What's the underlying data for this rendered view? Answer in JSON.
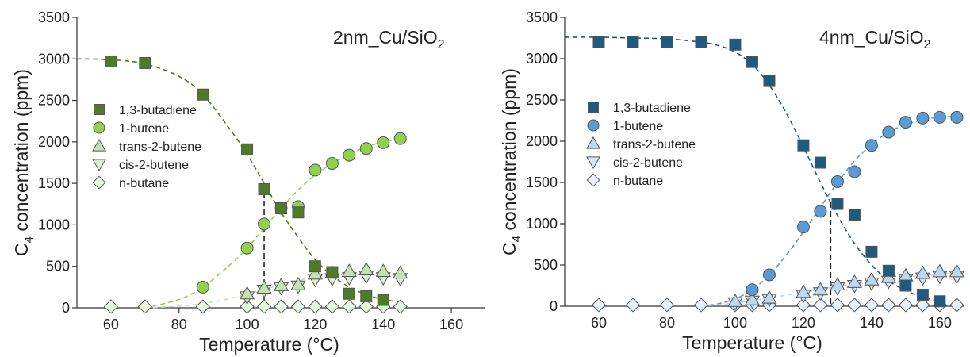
{
  "chart_data": [
    {
      "type": "scatter",
      "title": "2nm_Cu/SiO",
      "title_sub": "2",
      "xlabel": "Temperature (°C)",
      "ylabel_main": "C",
      "ylabel_sub": "4",
      "ylabel_rest": " concentration (ppm)",
      "xlim": [
        50,
        170
      ],
      "ylim": [
        0,
        3500
      ],
      "xticks": [
        60,
        80,
        100,
        120,
        140,
        160
      ],
      "yticks": [
        0,
        500,
        1000,
        1500,
        2000,
        2500,
        3000,
        3500
      ],
      "legend_position": "left",
      "colors": {
        "dark": "#4f7a28",
        "light": "#92d050",
        "pale": "#c6e0b4",
        "paler": "#dbeed0",
        "palest": "#e9f4e1"
      },
      "marker_line": 105,
      "series": [
        {
          "name": "1,3-butadiene",
          "marker": "square",
          "color": "#4f7a28",
          "x": [
            60,
            70,
            87,
            100,
            105,
            110,
            115,
            120,
            125,
            130,
            135,
            140
          ],
          "y": [
            2970,
            2950,
            2570,
            1910,
            1430,
            1200,
            1150,
            500,
            430,
            170,
            140,
            95
          ]
        },
        {
          "name": "1-butene",
          "marker": "circle",
          "color": "#92d050",
          "x": [
            87,
            100,
            105,
            110,
            115,
            120,
            125,
            130,
            135,
            140,
            145
          ],
          "y": [
            250,
            720,
            1010,
            1200,
            1220,
            1660,
            1740,
            1840,
            1920,
            1990,
            2040
          ]
        },
        {
          "name": "trans-2-butene",
          "marker": "triangle-up",
          "color": "#c6e0b4",
          "x": [
            100,
            105,
            110,
            115,
            120,
            125,
            130,
            135,
            140,
            145
          ],
          "y": [
            170,
            240,
            270,
            280,
            410,
            420,
            440,
            460,
            440,
            420
          ]
        },
        {
          "name": "cis-2-butene",
          "marker": "triangle-down",
          "color": "#dbeed0",
          "x": [
            100,
            105,
            110,
            115,
            120,
            125,
            130,
            135,
            140,
            145
          ],
          "y": [
            130,
            210,
            240,
            260,
            340,
            350,
            360,
            380,
            360,
            350
          ]
        },
        {
          "name": "n-butane",
          "marker": "diamond",
          "color": "#e9f4e1",
          "x": [
            60,
            70,
            87,
            100,
            105,
            110,
            115,
            120,
            125,
            130,
            135,
            140,
            145
          ],
          "y": [
            15,
            15,
            15,
            15,
            15,
            15,
            15,
            15,
            15,
            15,
            15,
            15,
            15
          ]
        }
      ],
      "fits": [
        {
          "series": "1,3-butadiene",
          "color": "#4f7a28",
          "x": [
            50,
            60,
            70,
            80,
            87,
            95,
            100,
            105,
            110,
            115,
            120,
            125,
            130,
            135,
            140,
            145
          ],
          "y": [
            3000,
            2990,
            2940,
            2790,
            2570,
            2150,
            1850,
            1500,
            1150,
            850,
            580,
            390,
            250,
            160,
            100,
            70
          ]
        },
        {
          "series": "1-butene",
          "color": "#92d050",
          "x": [
            70,
            80,
            87,
            95,
            100,
            105,
            110,
            115,
            120,
            125,
            130,
            135,
            140,
            145
          ],
          "y": [
            0,
            100,
            250,
            520,
            720,
            960,
            1200,
            1420,
            1600,
            1740,
            1850,
            1940,
            2000,
            2040
          ]
        },
        {
          "series": "trans-2-butene",
          "color": "#c6e0b4",
          "x": [
            70,
            80,
            90,
            100,
            105,
            110,
            115,
            120,
            125,
            130,
            135,
            140,
            145
          ],
          "y": [
            0,
            20,
            70,
            160,
            220,
            280,
            330,
            370,
            390,
            400,
            405,
            405,
            405
          ]
        }
      ]
    },
    {
      "type": "scatter",
      "title": "4nm_Cu/SiO",
      "title_sub": "2",
      "xlabel": "Temperature (°C)",
      "ylabel_main": "C",
      "ylabel_sub": "4",
      "ylabel_rest": " concentration (ppm)",
      "xlim": [
        50,
        167
      ],
      "ylim": [
        0,
        3500
      ],
      "xticks": [
        60,
        80,
        100,
        120,
        140,
        160
      ],
      "yticks": [
        0,
        500,
        1000,
        1500,
        2000,
        2500,
        3000,
        3500
      ],
      "legend_position": "left",
      "colors": {
        "dark": "#1f4e79",
        "light": "#5b9bd5",
        "pale": "#bdd7ee",
        "paler": "#d6e6f5",
        "palest": "#e8f1fa"
      },
      "marker_line": 128,
      "series": [
        {
          "name": "1,3-butadiene",
          "marker": "square",
          "color": "#1f5a80",
          "x": [
            60,
            70,
            80,
            90,
            100,
            105,
            110,
            120,
            125,
            130,
            135,
            140,
            145,
            150,
            155,
            160
          ],
          "y": [
            3200,
            3200,
            3200,
            3200,
            3170,
            2960,
            2730,
            1950,
            1740,
            1240,
            1110,
            660,
            430,
            250,
            140,
            60
          ]
        },
        {
          "name": "1-butene",
          "marker": "circle",
          "color": "#5b9bd5",
          "x": [
            105,
            110,
            120,
            125,
            130,
            135,
            140,
            145,
            150,
            155,
            160,
            165
          ],
          "y": [
            200,
            380,
            960,
            1150,
            1510,
            1630,
            1950,
            2110,
            2230,
            2280,
            2290,
            2290
          ]
        },
        {
          "name": "trans-2-butene",
          "marker": "triangle-up",
          "color": "#bdd7ee",
          "x": [
            100,
            105,
            110,
            120,
            125,
            130,
            135,
            140,
            145,
            150,
            155,
            160,
            165
          ],
          "y": [
            60,
            80,
            100,
            170,
            200,
            260,
            290,
            320,
            350,
            370,
            400,
            420,
            420
          ]
        },
        {
          "name": "cis-2-butene",
          "marker": "triangle-down",
          "color": "#d6e6f5",
          "x": [
            100,
            105,
            110,
            120,
            125,
            130,
            135,
            140,
            145,
            150,
            155,
            160,
            165
          ],
          "y": [
            40,
            60,
            80,
            130,
            160,
            220,
            250,
            280,
            300,
            320,
            340,
            360,
            360
          ]
        },
        {
          "name": "n-butane",
          "marker": "diamond",
          "color": "#e8f1fa",
          "x": [
            60,
            70,
            80,
            90,
            100,
            105,
            110,
            120,
            125,
            130,
            135,
            140,
            145,
            150,
            155,
            160,
            165
          ],
          "y": [
            15,
            15,
            15,
            15,
            15,
            15,
            15,
            15,
            15,
            15,
            15,
            15,
            15,
            15,
            15,
            15,
            15
          ]
        }
      ],
      "fits": [
        {
          "series": "1,3-butadiene",
          "color": "#1f5a80",
          "x": [
            50,
            60,
            70,
            80,
            90,
            95,
            100,
            105,
            110,
            115,
            120,
            125,
            130,
            135,
            140,
            145,
            150,
            155,
            160
          ],
          "y": [
            3260,
            3260,
            3250,
            3240,
            3200,
            3160,
            3080,
            2930,
            2680,
            2340,
            1930,
            1500,
            1100,
            760,
            500,
            310,
            190,
            110,
            60
          ]
        },
        {
          "series": "1-butene",
          "color": "#5b9bd5",
          "x": [
            90,
            95,
            100,
            105,
            110,
            115,
            120,
            125,
            130,
            135,
            140,
            145,
            150,
            155,
            160,
            165
          ],
          "y": [
            0,
            30,
            90,
            200,
            380,
            620,
            900,
            1200,
            1500,
            1760,
            1960,
            2110,
            2200,
            2260,
            2290,
            2300
          ]
        },
        {
          "series": "trans-2-butene",
          "color": "#bdd7ee",
          "x": [
            90,
            100,
            110,
            120,
            130,
            140,
            150,
            160,
            165
          ],
          "y": [
            0,
            40,
            100,
            170,
            240,
            300,
            350,
            390,
            400
          ]
        }
      ]
    }
  ]
}
